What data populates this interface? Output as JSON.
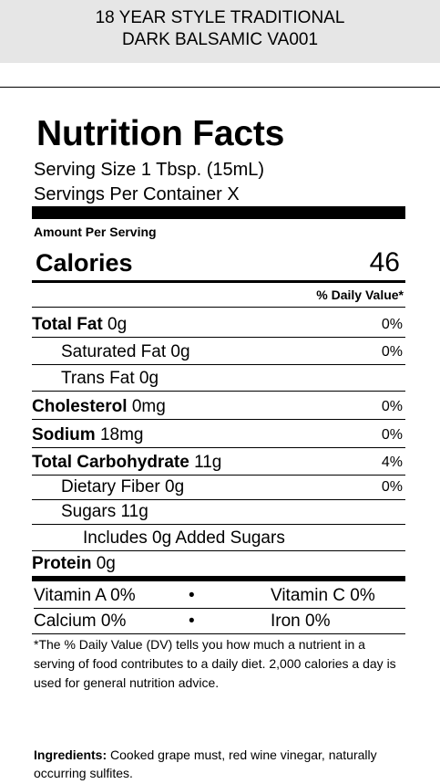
{
  "product": {
    "line1": "18 YEAR STYLE TRADITIONAL",
    "line2": "DARK BALSAMIC VA001"
  },
  "label": {
    "title": "Nutrition Facts",
    "serving_size": "Serving Size 1 Tbsp. (15mL)",
    "servings_per_container": "Servings Per Container X",
    "amount_per_serving": "Amount Per Serving",
    "calories_label": "Calories",
    "calories_value": "46",
    "daily_value_header": "% Daily Value*"
  },
  "nutrients": [
    {
      "name": "Total Fat",
      "amount": "0g",
      "dv": "0%"
    },
    {
      "name": "Saturated Fat",
      "amount": "0g",
      "dv": "0%"
    },
    {
      "name": "Trans Fat",
      "amount": "0g",
      "dv": ""
    },
    {
      "name": "Cholesterol",
      "amount": "0mg",
      "dv": "0%"
    },
    {
      "name": "Sodium",
      "amount": "18mg",
      "dv": "0%"
    },
    {
      "name": "Total Carbohydrate",
      "amount": "11g",
      "dv": "4%"
    },
    {
      "name": "Dietary Fiber",
      "amount": "0g",
      "dv": "0%"
    },
    {
      "name": "Sugars",
      "amount": "11g",
      "dv": ""
    },
    {
      "name": "Includes 0g Added Sugars",
      "amount": "",
      "dv": ""
    },
    {
      "name": "Protein",
      "amount": "0g",
      "dv": ""
    }
  ],
  "vitamins": {
    "vitamin_a": "Vitamin A 0%",
    "bullet": "•",
    "vitamin_c": "Vitamin C 0%",
    "calcium": "Calcium 0%",
    "iron": "Iron 0%"
  },
  "footnote": "*The % Daily Value (DV) tells you how much a nutrient in a serving of food contributes to a daily diet. 2,000 calories a day is used for general nutrition advice.",
  "ingredients": {
    "label": "Ingredients:",
    "text": " Cooked grape must, red wine vinegar, naturally occurring sulfites."
  }
}
